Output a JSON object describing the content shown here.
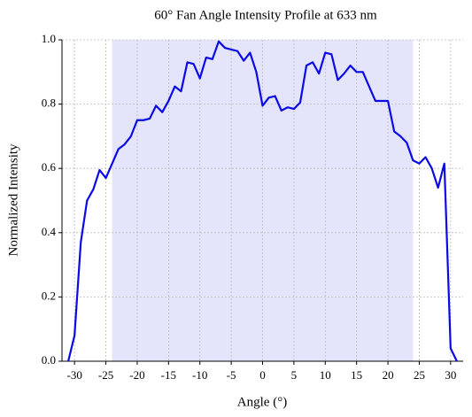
{
  "chart_data": {
    "type": "line",
    "title": "60° Fan Angle Intensity Profile at 633 nm",
    "x_label": "Angle (°)",
    "y_label": "Normalized Intensity",
    "x": [
      -31,
      -30,
      -29,
      -28,
      -27,
      -26,
      -25,
      -24,
      -23,
      -22,
      -21,
      -20,
      -19,
      -18,
      -17,
      -16,
      -15,
      -14,
      -13,
      -12,
      -11,
      -10,
      -9,
      -8,
      -7,
      -6,
      -5,
      -4,
      -3,
      -2,
      -1,
      0,
      1,
      2,
      3,
      4,
      5,
      6,
      7,
      8,
      9,
      10,
      11,
      12,
      13,
      14,
      15,
      16,
      17,
      18,
      19,
      20,
      21,
      22,
      23,
      24,
      25,
      26,
      27,
      28,
      29,
      30,
      31
    ],
    "series": [
      {
        "name": "Intensity",
        "color": "#0a0ae6",
        "values": [
          0.0,
          0.08,
          0.37,
          0.5,
          0.535,
          0.595,
          0.57,
          0.615,
          0.66,
          0.675,
          0.7,
          0.75,
          0.75,
          0.755,
          0.795,
          0.775,
          0.81,
          0.855,
          0.84,
          0.93,
          0.925,
          0.88,
          0.945,
          0.94,
          0.995,
          0.975,
          0.97,
          0.965,
          0.935,
          0.96,
          0.9,
          0.795,
          0.82,
          0.825,
          0.78,
          0.79,
          0.785,
          0.805,
          0.92,
          0.93,
          0.895,
          0.96,
          0.955,
          0.875,
          0.895,
          0.92,
          0.9,
          0.9,
          0.855,
          0.81,
          0.81,
          0.81,
          0.715,
          0.7,
          0.68,
          0.625,
          0.615,
          0.635,
          0.6,
          0.54,
          0.615,
          0.04,
          0.0
        ]
      }
    ],
    "shaded_region": {
      "range": [
        -24,
        24
      ],
      "color": "#e4e4fb"
    },
    "xlim": [
      -32,
      32
    ],
    "ylim": [
      0,
      1
    ],
    "xticks": [
      -30,
      -25,
      -20,
      -15,
      -10,
      -5,
      0,
      5,
      10,
      15,
      20,
      25,
      30
    ],
    "yticks": [
      {
        "value": 0,
        "label": "0.0"
      },
      0.2,
      0.4,
      0.6,
      0.8,
      {
        "value": 1,
        "label": "1.0"
      }
    ],
    "grid": true
  }
}
